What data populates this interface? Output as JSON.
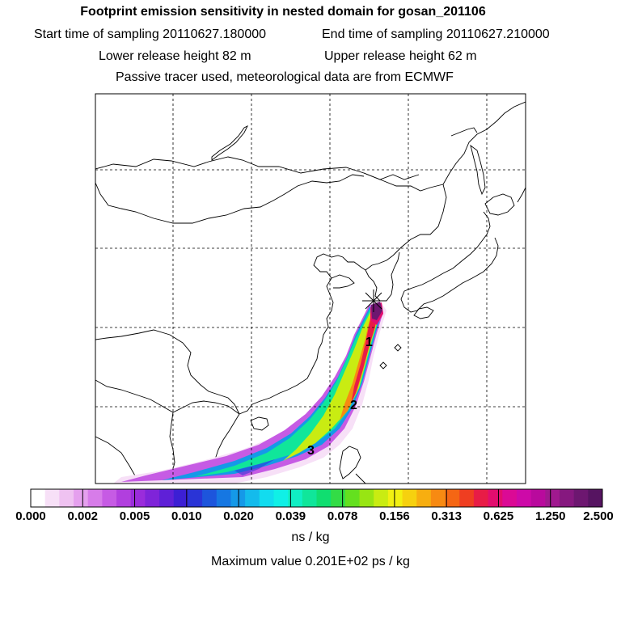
{
  "header": {
    "title": "Footprint emission sensitivity in nested domain for gosan_201106",
    "start_time": "Start time of sampling 20110627.180000",
    "end_time": "End time of sampling 20110627.210000",
    "lower_height": "Lower release height   82 m",
    "upper_height": "Upper release height   62 m",
    "tracer_note": "Passive tracer used, meteorological data are from ECMWF"
  },
  "map": {
    "trajectory_markers": [
      "1",
      "2",
      "3"
    ],
    "release_site_marker": "star"
  },
  "colorbar": {
    "colors": [
      "#ffffff",
      "#f7e0f7",
      "#efc2f1",
      "#e5a0ee",
      "#d77ce9",
      "#c65be4",
      "#b13fde",
      "#9a2cdb",
      "#7f24d9",
      "#5f20d7",
      "#3c1fd4",
      "#2a34d6",
      "#1d55dc",
      "#1677e2",
      "#1599e8",
      "#14bbec",
      "#12dcef",
      "#10f0e6",
      "#10efc4",
      "#10e69a",
      "#10de70",
      "#33dc46",
      "#64e01f",
      "#98e513",
      "#c9ec12",
      "#f2f011",
      "#f6d10f",
      "#f7ae10",
      "#f78a12",
      "#f56614",
      "#ef3e21",
      "#e81c46",
      "#e20d6e",
      "#db0a95",
      "#cd0aa8",
      "#b90a9d",
      "#a0198f",
      "#86187f",
      "#6d1770",
      "#561461"
    ],
    "labels": [
      "0.000",
      "0.002",
      "0.005",
      "0.010",
      "0.020",
      "0.039",
      "0.078",
      "0.156",
      "0.313",
      "0.625",
      "1.250",
      "2.500"
    ],
    "units": "ns / kg",
    "max_value_text": "Maximum value  0.201E+02 ps / kg"
  }
}
